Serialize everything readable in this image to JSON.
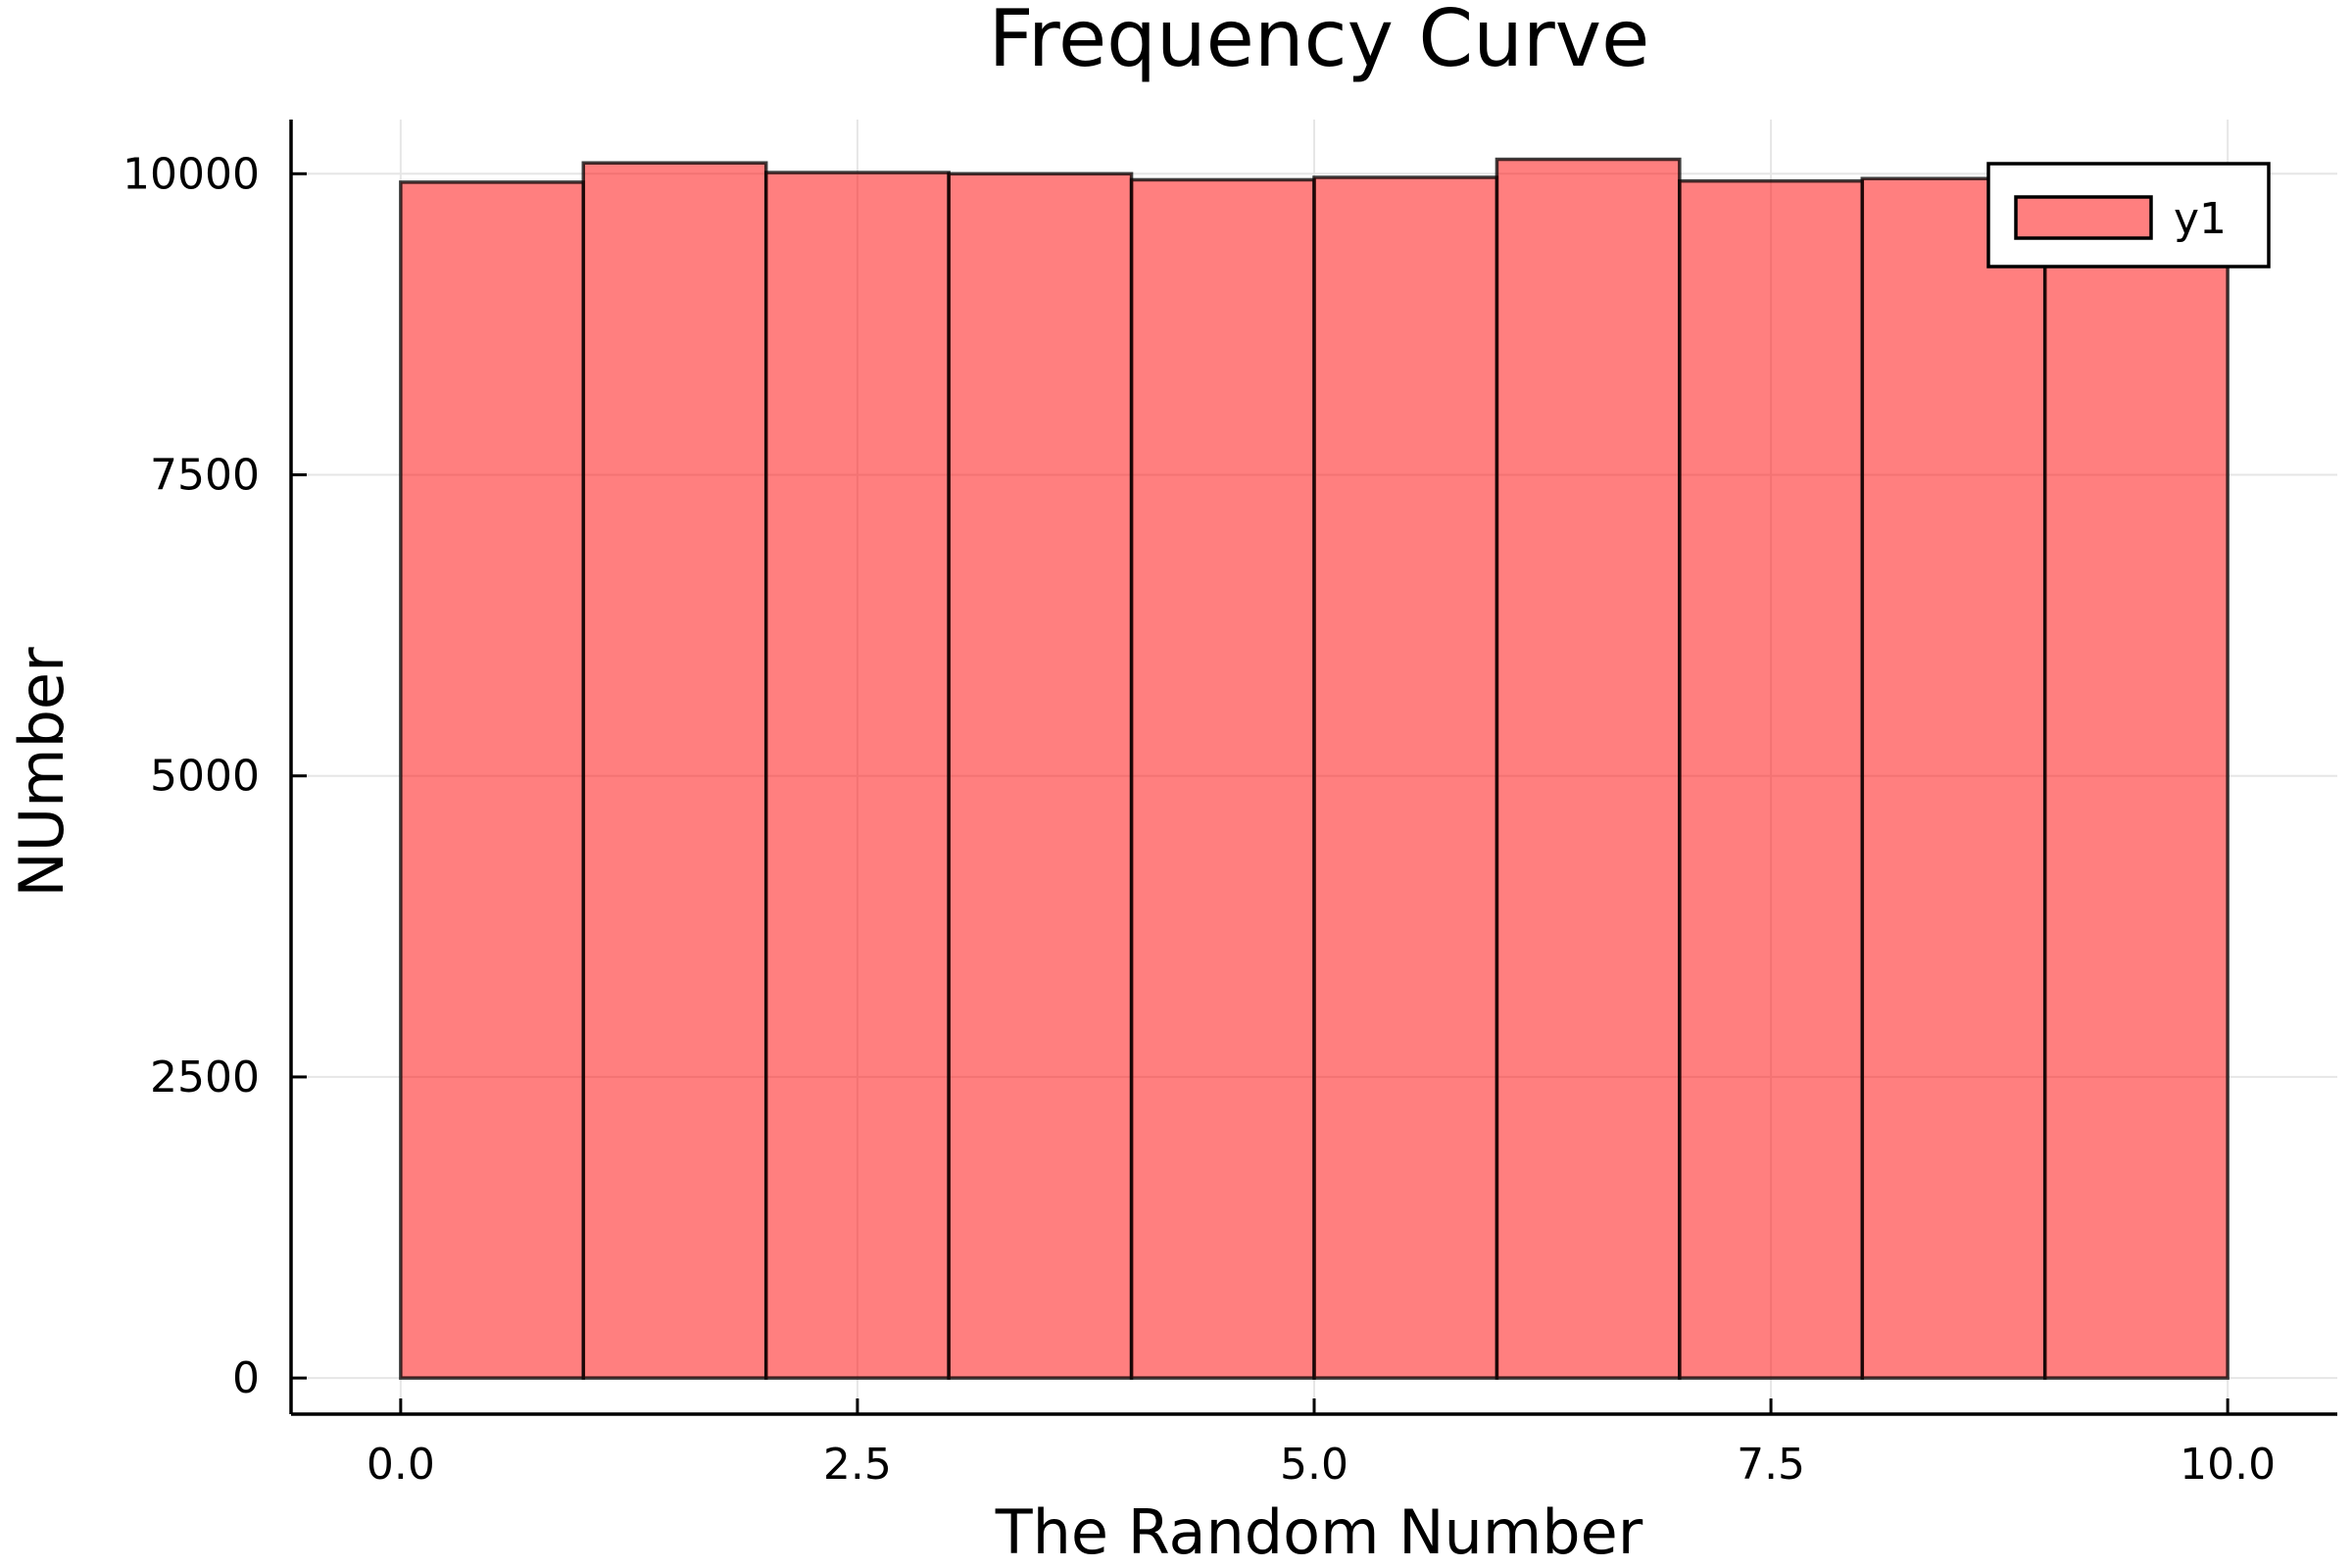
{
  "chart_data": {
    "type": "bar",
    "subtype": "histogram",
    "title": "Frequency Curve",
    "xlabel": "The Random Number",
    "ylabel": "NUmber",
    "bin_edges": [
      0,
      1,
      2,
      3,
      4,
      5,
      6,
      7,
      8,
      9,
      10
    ],
    "values": [
      9930,
      10090,
      10010,
      10000,
      9950,
      9970,
      10120,
      9940,
      9960,
      9960
    ],
    "xlim": [
      -0.6,
      10.6
    ],
    "ylim": [
      -300,
      10450
    ],
    "xticks": [
      0,
      2.5,
      5,
      7.5,
      10
    ],
    "xtick_labels": [
      "0.0",
      "2.5",
      "5.0",
      "7.5",
      "10.0"
    ],
    "yticks": [
      0,
      2500,
      5000,
      7500,
      10000
    ],
    "ytick_labels": [
      "0",
      "2500",
      "5000",
      "7500",
      "10000"
    ],
    "grid": true,
    "legend": {
      "position": "top-right",
      "entries": [
        {
          "label": "y1",
          "color": "#ff0000",
          "opacity": 0.5
        }
      ]
    },
    "bar_color": "#ff0000",
    "bar_opacity": 0.5
  }
}
